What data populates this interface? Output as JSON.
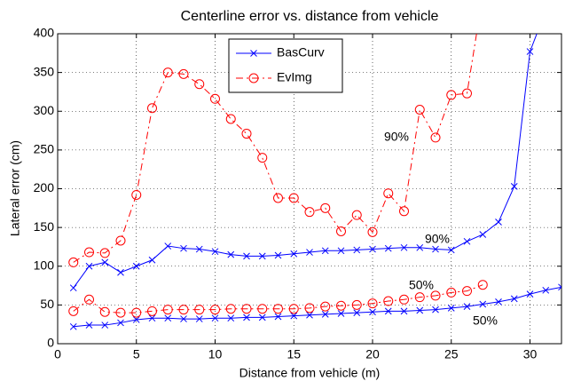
{
  "chart_data": {
    "type": "line",
    "title": "Centerline error vs. distance from vehicle",
    "x_label": "Distance from vehicle (m)",
    "y_label": "Lateral error (cm)",
    "xlim": [
      0,
      32
    ],
    "xticks": [
      0,
      5,
      10,
      15,
      20,
      25,
      30
    ],
    "ylim": [
      0,
      400
    ],
    "yticks": [
      0,
      50,
      100,
      150,
      200,
      250,
      300,
      350,
      400
    ],
    "grid": true,
    "legend": "top",
    "series": [
      {
        "name": "BasCurv",
        "color": "#0000ff",
        "marker": "x",
        "dash": "solid",
        "curves": [
          {
            "label": "90%",
            "x": [
              1,
              2,
              3,
              4,
              5,
              6,
              7,
              8,
              9,
              10,
              11,
              12,
              13,
              14,
              15,
              16,
              17,
              18,
              19,
              20,
              21,
              22,
              23,
              24,
              25,
              26,
              27,
              28,
              29,
              30,
              31
            ],
            "values": [
              72,
              100,
              105,
              92,
              100,
              108,
              126,
              123,
              122,
              119,
              115,
              113,
              113,
              114,
              116,
              118,
              120,
              120,
              121,
              122,
              123,
              124,
              124,
              122,
              121,
              132,
              141,
              157,
              203,
              377,
              430
            ]
          },
          {
            "label": "50%",
            "x": [
              1,
              2,
              3,
              4,
              5,
              6,
              7,
              8,
              9,
              10,
              11,
              12,
              13,
              14,
              15,
              16,
              17,
              18,
              19,
              20,
              21,
              22,
              23,
              24,
              25,
              26,
              27,
              28,
              29,
              30,
              31,
              32
            ],
            "values": [
              22,
              24,
              24,
              27,
              31,
              33,
              33,
              32,
              32,
              33,
              33,
              34,
              34,
              35,
              36,
              37,
              38,
              39,
              40,
              41,
              42,
              42,
              43,
              44,
              46,
              48,
              51,
              54,
              58,
              64,
              69,
              73
            ]
          }
        ]
      },
      {
        "name": "EvImg",
        "color": "#ff0000",
        "marker": "o",
        "dash": "dashdot",
        "curves": [
          {
            "label": "90%",
            "x": [
              1,
              2,
              3,
              4,
              5,
              6,
              7,
              8,
              9,
              10,
              11,
              12,
              13,
              14,
              15,
              16,
              17,
              18,
              19,
              20,
              21,
              22,
              23,
              24,
              25,
              26,
              27
            ],
            "values": [
              105,
              118,
              117,
              133,
              192,
              304,
              350,
              348,
              335,
              316,
              290,
              271,
              240,
              188,
              188,
              170,
              175,
              145,
              166,
              144,
              194,
              171,
              302,
              266,
              321,
              323,
              450
            ]
          },
          {
            "label": "50%",
            "x": [
              1,
              2,
              3,
              4,
              5,
              6,
              7,
              8,
              9,
              10,
              11,
              12,
              13,
              14,
              15,
              16,
              17,
              18,
              19,
              20,
              21,
              22,
              23,
              24,
              25,
              26,
              27
            ],
            "values": [
              42,
              57,
              41,
              40,
              40,
              42,
              44,
              44,
              44,
              44,
              45,
              45,
              45,
              45,
              45,
              46,
              48,
              49,
              50,
              52,
              55,
              57,
              60,
              62,
              66,
              68,
              76
            ]
          }
        ]
      }
    ]
  }
}
